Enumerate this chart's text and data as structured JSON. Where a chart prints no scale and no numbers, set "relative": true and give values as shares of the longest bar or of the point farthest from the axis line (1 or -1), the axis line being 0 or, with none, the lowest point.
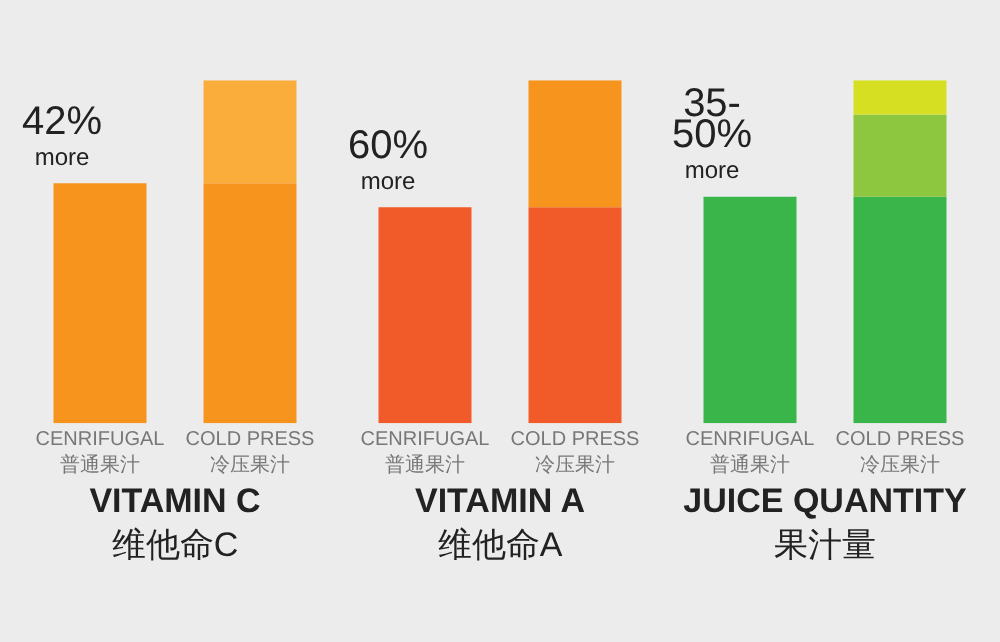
{
  "chart_data": [
    {
      "type": "bar",
      "relative": true,
      "stacked": true,
      "categories": [
        "CENRIFUGAL\n普通果汁",
        "COLD PRESS\n冷压果汁"
      ],
      "xlabel": "VITAMIN C\n维他命C",
      "annotations": [
        "42%\nmore"
      ],
      "series": [
        {
          "color": "#f7941d",
          "values": [
            0.7,
            0.7
          ]
        },
        {
          "color": "#fbad3c",
          "values": [
            null,
            0.3
          ]
        }
      ]
    },
    {
      "type": "bar",
      "relative": true,
      "stacked": true,
      "categories": [
        "CENRIFUGAL\n普通果汁",
        "COLD PRESS\n冷压果汁"
      ],
      "xlabel": "VITAMIN A\n维他命A",
      "annotations": [
        "60%\nmore"
      ],
      "series": [
        {
          "color": "#f15a29",
          "values": [
            0.63,
            0.63
          ]
        },
        {
          "color": "#f7941d",
          "values": [
            null,
            0.37
          ]
        }
      ]
    },
    {
      "type": "bar",
      "relative": true,
      "stacked": true,
      "categories": [
        "CENRIFUGAL\n普通果汁",
        "COLD PRESS\n冷压果汁"
      ],
      "xlabel": "JUICE QUANTITY\n果汁量",
      "annotations": [
        "35-\n50%\nmore"
      ],
      "series": [
        {
          "color": "#39b54a",
          "values": [
            0.66,
            0.66
          ]
        },
        {
          "color": "#8dc63f",
          "values": [
            null,
            0.24
          ]
        },
        {
          "color": "#d7df23",
          "values": [
            null,
            0.1
          ]
        }
      ]
    }
  ]
}
